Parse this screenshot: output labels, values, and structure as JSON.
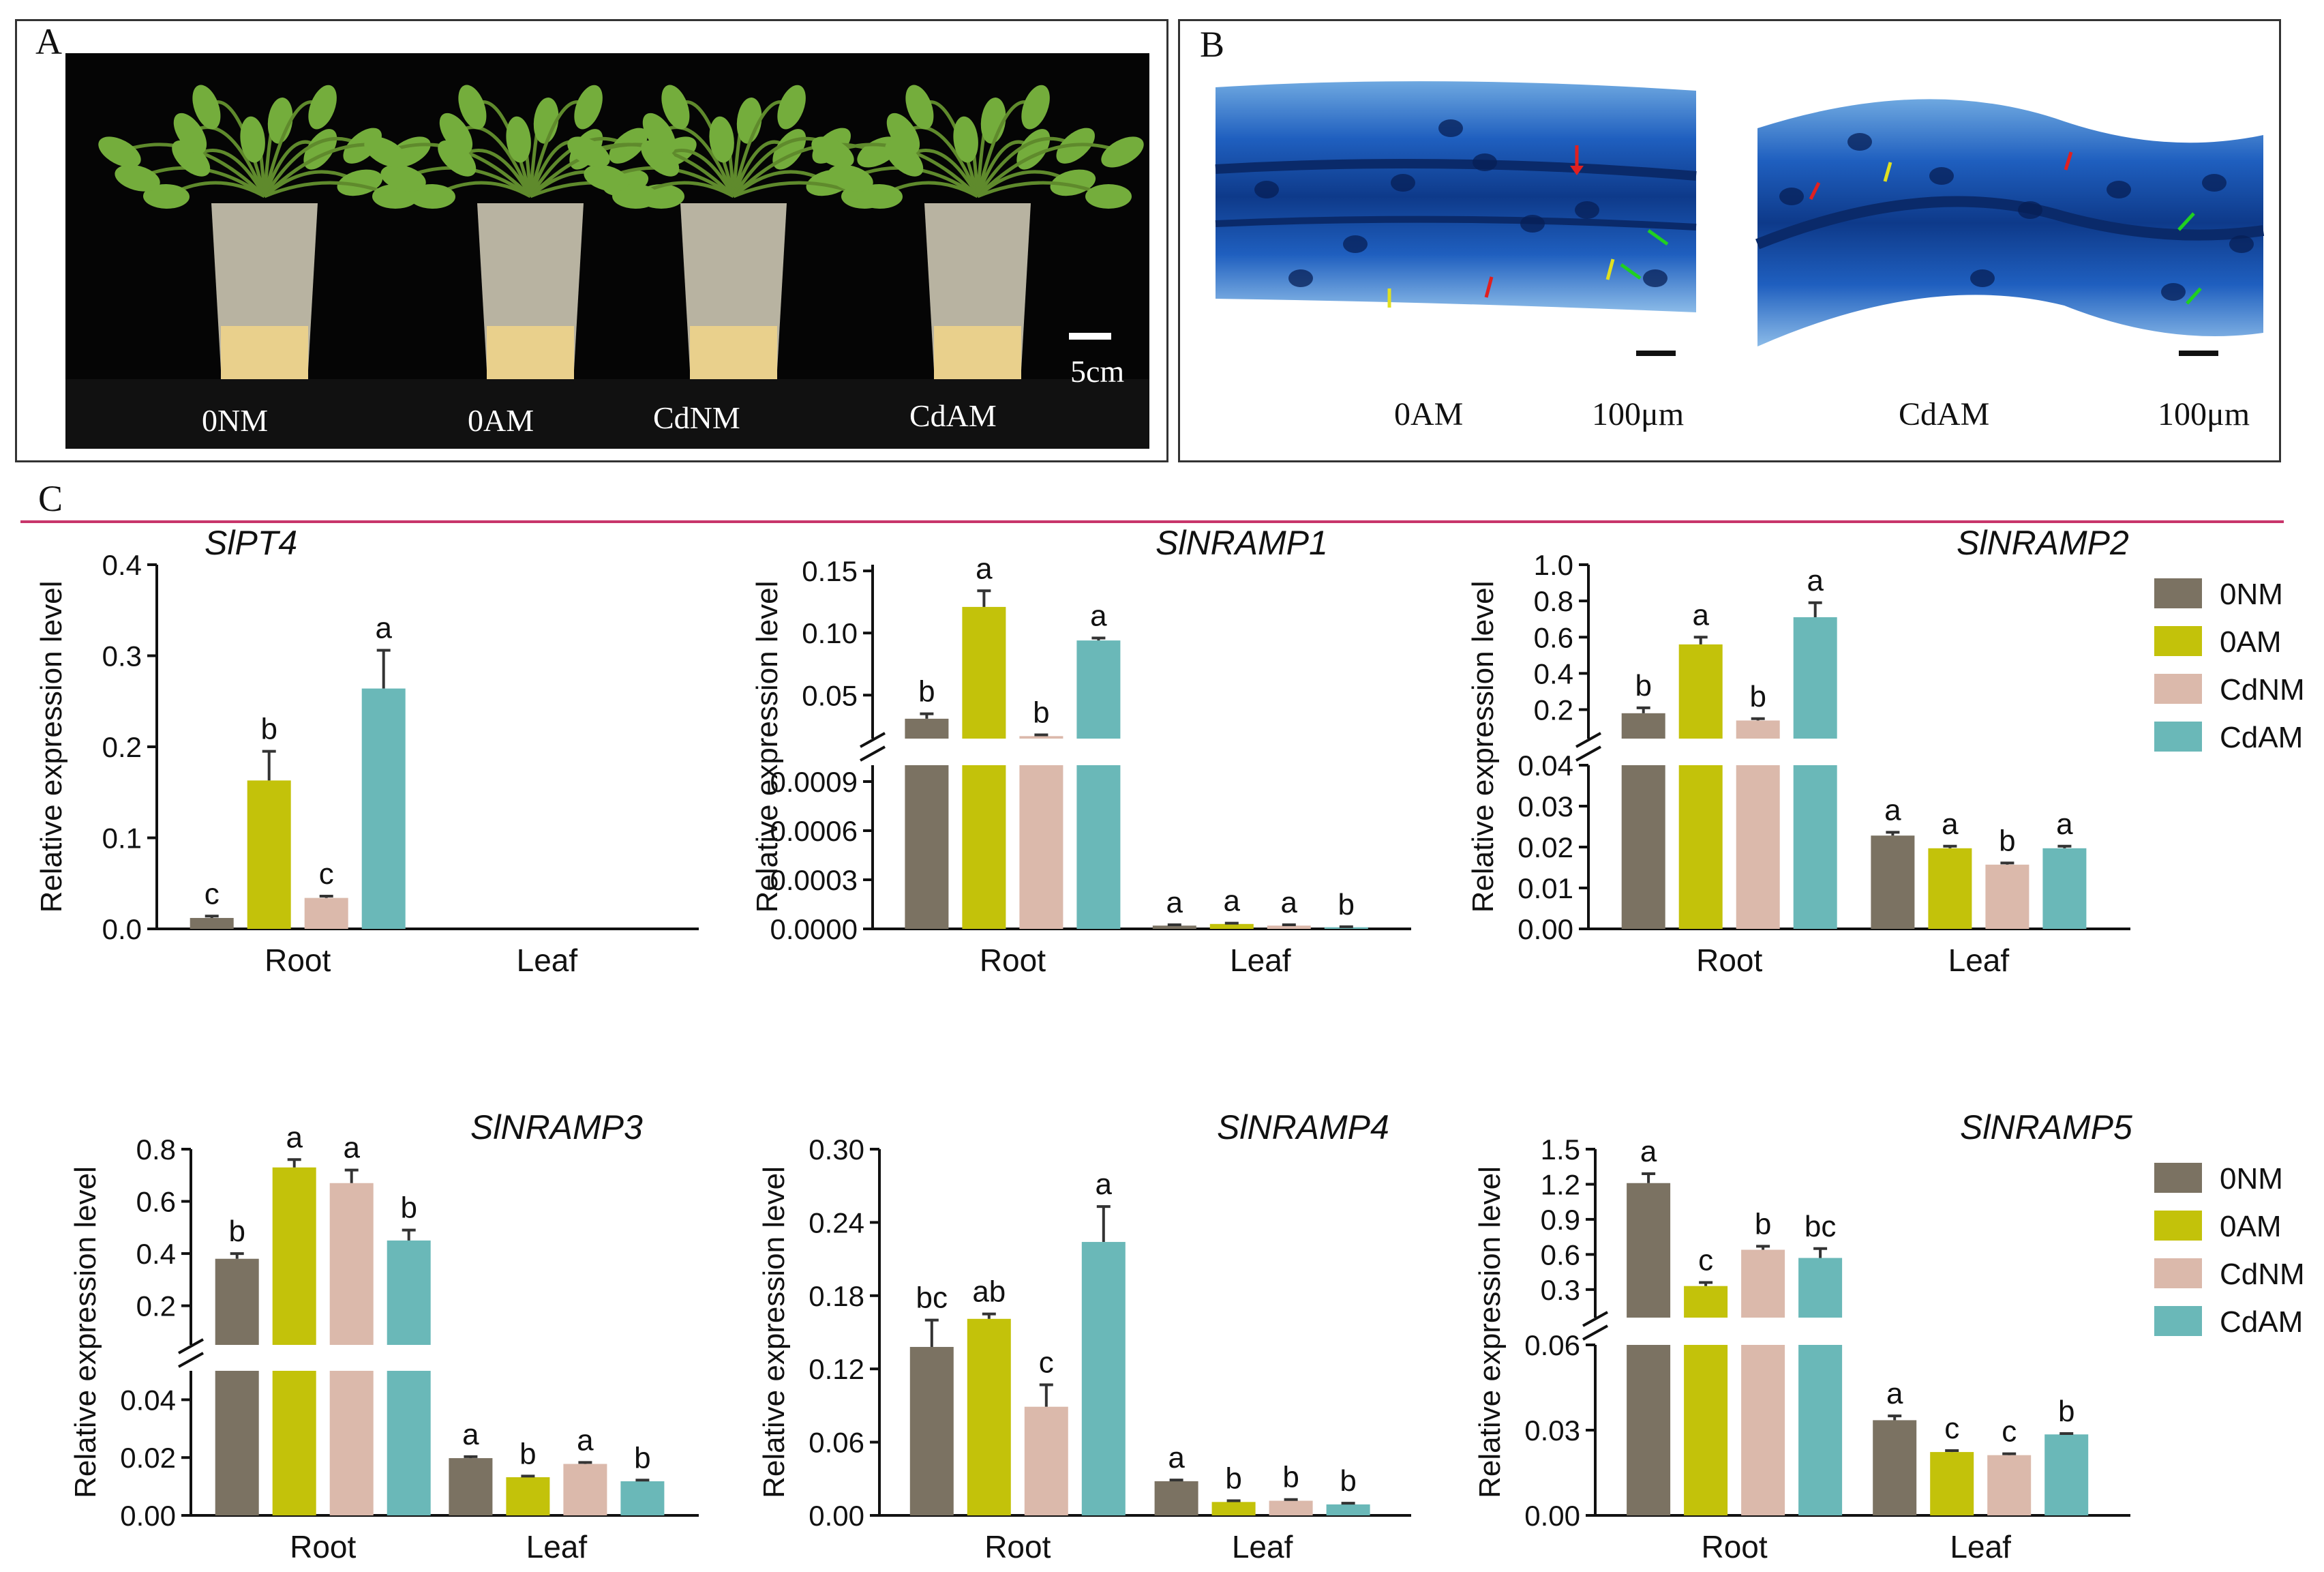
{
  "panel_a": {
    "letter": "A",
    "scale_bar": "5cm",
    "treatments": [
      "0NM",
      "0AM",
      "CdNM",
      "CdAM"
    ]
  },
  "panel_b": {
    "letter": "B",
    "images": [
      {
        "label": "0AM",
        "scale_bar": "100μm"
      },
      {
        "label": "CdAM",
        "scale_bar": "100μm"
      }
    ]
  },
  "panel_c": {
    "letter": "C",
    "legend_entries": [
      "0NM",
      "0AM",
      "CdNM",
      "CdAM"
    ]
  },
  "colors": {
    "0NM": "#7b7262",
    "0AM": "#c3c20a",
    "CdNM": "#dbb9ab",
    "CdAM": "#6ab8b8",
    "divider": "#c8356b"
  },
  "chart_data": [
    {
      "type": "bar",
      "title": "SlPT4",
      "ylabel": "Relative expression level",
      "categories": [
        "Root",
        "Leaf"
      ],
      "series": [
        {
          "name": "0NM",
          "values": [
            0.012,
            null
          ],
          "errors": [
            0.002,
            null
          ],
          "letters": [
            "c",
            ""
          ]
        },
        {
          "name": "0AM",
          "values": [
            0.163,
            null
          ],
          "errors": [
            0.032,
            null
          ],
          "letters": [
            "b",
            ""
          ]
        },
        {
          "name": "CdNM",
          "values": [
            0.034,
            null
          ],
          "errors": [
            0.002,
            null
          ],
          "letters": [
            "c",
            ""
          ]
        },
        {
          "name": "CdAM",
          "values": [
            0.264,
            null
          ],
          "errors": [
            0.042,
            null
          ],
          "letters": [
            "a",
            ""
          ]
        }
      ],
      "axes": [
        {
          "ylim": [
            0,
            0.4
          ],
          "ticks": [
            "0.0",
            "0.1",
            "0.2",
            "0.3",
            "0.4"
          ],
          "tick_values": [
            0,
            0.1,
            0.2,
            0.3,
            0.4
          ]
        }
      ]
    },
    {
      "type": "bar",
      "title": "SlNRAMP1",
      "ylabel": "Relative expression level",
      "categories": [
        "Root",
        "Leaf"
      ],
      "series": [
        {
          "name": "0NM",
          "values": [
            0.031,
            2e-05
          ],
          "errors": [
            0.004,
            5e-06
          ],
          "letters": [
            "b",
            "a"
          ]
        },
        {
          "name": "0AM",
          "values": [
            0.121,
            3e-05
          ],
          "errors": [
            0.013,
            5e-06
          ],
          "letters": [
            "a",
            "a"
          ]
        },
        {
          "name": "CdNM",
          "values": [
            0.017,
            2e-05
          ],
          "errors": [
            0.001,
            5e-06
          ],
          "letters": [
            "b",
            "a"
          ]
        },
        {
          "name": "CdAM",
          "values": [
            0.094,
            1e-05
          ],
          "errors": [
            0.002,
            3e-06
          ],
          "letters": [
            "a",
            "b"
          ]
        }
      ],
      "axes": [
        {
          "ylim": [
            0,
            0.001
          ],
          "ticks": [
            "0.0000",
            "0.0003",
            "0.0006",
            "0.0009"
          ],
          "tick_values": [
            0,
            0.0003,
            0.0006,
            0.0009
          ]
        },
        {
          "ylim": [
            0.015,
            0.155
          ],
          "ticks": [
            "0.05",
            "0.10",
            "0.15"
          ],
          "tick_values": [
            0.05,
            0.1,
            0.15
          ]
        }
      ]
    },
    {
      "type": "bar",
      "title": "SlNRAMP2",
      "ylabel": "Relative expression level",
      "categories": [
        "Root",
        "Leaf"
      ],
      "series": [
        {
          "name": "0NM",
          "values": [
            0.18,
            0.0228
          ],
          "errors": [
            0.03,
            0.0008
          ],
          "letters": [
            "b",
            "a"
          ]
        },
        {
          "name": "0AM",
          "values": [
            0.56,
            0.0197
          ],
          "errors": [
            0.04,
            0.0005
          ],
          "letters": [
            "a",
            "a"
          ]
        },
        {
          "name": "CdNM",
          "values": [
            0.14,
            0.0157
          ],
          "errors": [
            0.01,
            0.0004
          ],
          "letters": [
            "b",
            "b"
          ]
        },
        {
          "name": "CdAM",
          "values": [
            0.71,
            0.0197
          ],
          "errors": [
            0.08,
            0.0005
          ],
          "letters": [
            "a",
            "a"
          ]
        }
      ],
      "axes": [
        {
          "ylim": [
            0,
            0.04
          ],
          "ticks": [
            "0.00",
            "0.01",
            "0.02",
            "0.03",
            "0.04"
          ],
          "tick_values": [
            0,
            0.01,
            0.02,
            0.03,
            0.04
          ]
        },
        {
          "ylim": [
            0.04,
            1.0
          ],
          "ticks": [
            "0.2",
            "0.4",
            "0.6",
            "0.8",
            "1.0"
          ],
          "tick_values": [
            0.2,
            0.4,
            0.6,
            0.8,
            1.0
          ]
        }
      ],
      "legend": "right"
    },
    {
      "type": "bar",
      "title": "SlNRAMP3",
      "ylabel": "Relative expression level",
      "categories": [
        "Root",
        "Leaf"
      ],
      "series": [
        {
          "name": "0NM",
          "values": [
            0.38,
            0.0198
          ],
          "errors": [
            0.02,
            0.0005
          ],
          "letters": [
            "b",
            "a"
          ]
        },
        {
          "name": "0AM",
          "values": [
            0.73,
            0.0132
          ],
          "errors": [
            0.03,
            0.0004
          ],
          "letters": [
            "a",
            "b"
          ]
        },
        {
          "name": "CdNM",
          "values": [
            0.67,
            0.0178
          ],
          "errors": [
            0.05,
            0.0005
          ],
          "letters": [
            "a",
            "a"
          ]
        },
        {
          "name": "CdAM",
          "values": [
            0.45,
            0.0118
          ],
          "errors": [
            0.04,
            0.0004
          ],
          "letters": [
            "b",
            "b"
          ]
        }
      ],
      "axes": [
        {
          "ylim": [
            0,
            0.05
          ],
          "ticks": [
            "0.00",
            "0.02",
            "0.04"
          ],
          "tick_values": [
            0,
            0.02,
            0.04
          ]
        },
        {
          "ylim": [
            0.05,
            0.8
          ],
          "ticks": [
            "0.2",
            "0.4",
            "0.6",
            "0.8"
          ],
          "tick_values": [
            0.2,
            0.4,
            0.6,
            0.8
          ]
        }
      ]
    },
    {
      "type": "bar",
      "title": "SlNRAMP4",
      "ylabel": "Relative expression level",
      "categories": [
        "Root",
        "Leaf"
      ],
      "series": [
        {
          "name": "0NM",
          "values": [
            0.138,
            0.028
          ],
          "errors": [
            0.022,
            0.001
          ],
          "letters": [
            "bc",
            "a"
          ]
        },
        {
          "name": "0AM",
          "values": [
            0.161,
            0.011
          ],
          "errors": [
            0.004,
            0.001
          ],
          "letters": [
            "ab",
            "b"
          ]
        },
        {
          "name": "CdNM",
          "values": [
            0.089,
            0.012
          ],
          "errors": [
            0.018,
            0.001
          ],
          "letters": [
            "c",
            "b"
          ]
        },
        {
          "name": "CdAM",
          "values": [
            0.224,
            0.009
          ],
          "errors": [
            0.029,
            0.001
          ],
          "letters": [
            "a",
            "b"
          ]
        }
      ],
      "axes": [
        {
          "ylim": [
            0,
            0.3
          ],
          "ticks": [
            "0.00",
            "0.06",
            "0.12",
            "0.18",
            "0.24",
            "0.30"
          ],
          "tick_values": [
            0,
            0.06,
            0.12,
            0.18,
            0.24,
            0.3
          ]
        }
      ]
    },
    {
      "type": "bar",
      "title": "SlNRAMP5",
      "ylabel": "Relative expression level",
      "categories": [
        "Root",
        "Leaf"
      ],
      "series": [
        {
          "name": "0NM",
          "values": [
            1.21,
            0.0335
          ],
          "errors": [
            0.08,
            0.0015
          ],
          "letters": [
            "a",
            "a"
          ]
        },
        {
          "name": "0AM",
          "values": [
            0.33,
            0.0223
          ],
          "errors": [
            0.03,
            0.0005
          ],
          "letters": [
            "c",
            "c"
          ]
        },
        {
          "name": "CdNM",
          "values": [
            0.64,
            0.0212
          ],
          "errors": [
            0.03,
            0.0005
          ],
          "letters": [
            "b",
            "c"
          ]
        },
        {
          "name": "CdAM",
          "values": [
            0.57,
            0.0285
          ],
          "errors": [
            0.08,
            0.0003
          ],
          "letters": [
            "bc",
            "b"
          ]
        }
      ],
      "axes": [
        {
          "ylim": [
            0,
            0.06
          ],
          "ticks": [
            "0.00",
            "0.03",
            "0.06"
          ],
          "tick_values": [
            0,
            0.03,
            0.06
          ]
        },
        {
          "ylim": [
            0.06,
            1.5
          ],
          "ticks": [
            "0.3",
            "0.6",
            "0.9",
            "1.2",
            "1.5"
          ],
          "tick_values": [
            0.3,
            0.6,
            0.9,
            1.2,
            1.5
          ]
        }
      ],
      "legend": "right"
    }
  ]
}
